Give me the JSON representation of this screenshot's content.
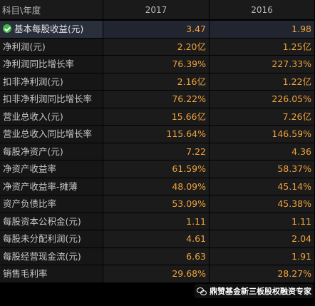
{
  "header": {
    "label": "科目\\年度",
    "years": [
      "2017",
      "2016"
    ]
  },
  "rows": [
    {
      "label": "基本每股收益(元)",
      "v2017": "3.47",
      "v2016": "1.98"
    },
    {
      "label": "净利润(元)",
      "v2017": "2.20亿",
      "v2016": "1.25亿"
    },
    {
      "label": "净利润同比增长率",
      "v2017": "76.39%",
      "v2016": "227.33%"
    },
    {
      "label": "扣非净利润(元)",
      "v2017": "2.16亿",
      "v2016": "1.22亿"
    },
    {
      "label": "扣非净利润同比增长率",
      "v2017": "76.22%",
      "v2016": "226.05%"
    },
    {
      "label": "营业总收入(元)",
      "v2017": "15.66亿",
      "v2016": "7.26亿"
    },
    {
      "label": "营业总收入同比增长率",
      "v2017": "115.64%",
      "v2016": "146.59%"
    },
    {
      "label": "每股净资产(元)",
      "v2017": "7.22",
      "v2016": "4.36"
    },
    {
      "label": "净资产收益率",
      "v2017": "61.59%",
      "v2016": "58.37%"
    },
    {
      "label": "净资产收益率-摊薄",
      "v2017": "48.09%",
      "v2016": "45.14%"
    },
    {
      "label": "资产负债比率",
      "v2017": "53.09%",
      "v2016": "45.38%"
    },
    {
      "label": "每股资本公积金(元)",
      "v2017": "1.11",
      "v2016": "1.11"
    },
    {
      "label": "每股未分配利润(元)",
      "v2017": "4.61",
      "v2016": "2.04"
    },
    {
      "label": "每股经营现金流(元)",
      "v2017": "6.63",
      "v2016": "1.91"
    },
    {
      "label": "销售毛利率",
      "v2017": "29.68%",
      "v2016": "28.27%"
    }
  ],
  "watermark": {
    "text": "鼎赞基金新三板股权融资专家",
    "icon": "wechat-icon"
  },
  "colors": {
    "value": "#f0a23c",
    "check": "#3dbb3d"
  }
}
